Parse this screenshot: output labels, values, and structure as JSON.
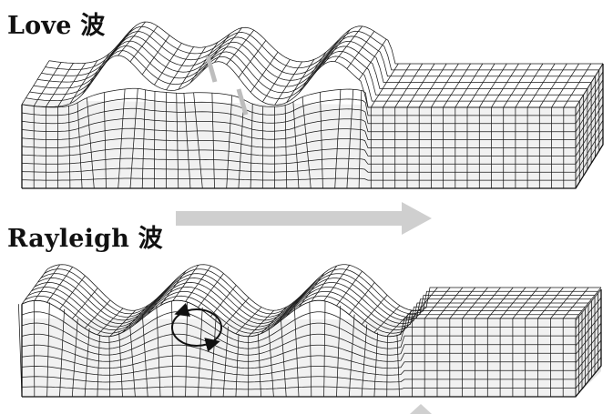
{
  "panels": {
    "love": {
      "title": "Love 波"
    },
    "rayleigh": {
      "title": "Rayleigh 波"
    }
  },
  "colors": {
    "grid": "#1a1a1a",
    "arrow": "#c8c8c8",
    "front_face_shade": "#f1f1f1",
    "side_face_shade": "#e6e6e6"
  },
  "icons": {
    "propagation_arrow": "right-arrow-icon",
    "particle_motion": "elliptical-orbit-icon"
  }
}
